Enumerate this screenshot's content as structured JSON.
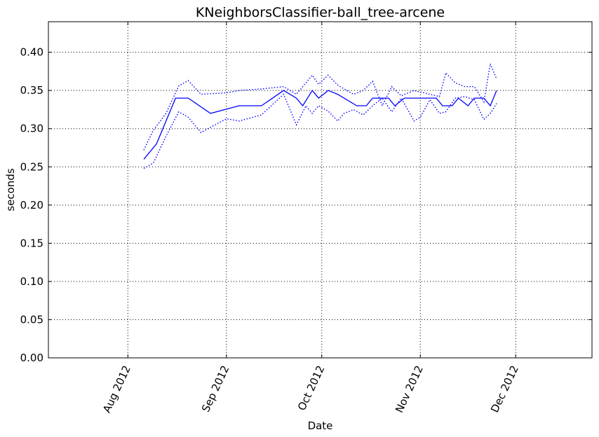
{
  "chart_data": {
    "type": "line",
    "title": "KNeighborsClassifier-ball_tree-arcene",
    "xlabel": "Date",
    "ylabel": "seconds",
    "x_axis_type": "date",
    "xlim": [
      "2012-07-07",
      "2012-12-25"
    ],
    "ylim": [
      0,
      0.44
    ],
    "grid": true,
    "yticks": [
      0.0,
      0.05,
      0.1,
      0.15,
      0.2,
      0.25,
      0.3,
      0.35,
      0.4
    ],
    "ytick_labels": [
      "0.00",
      "0.05",
      "0.10",
      "0.15",
      "0.20",
      "0.25",
      "0.30",
      "0.35",
      "0.40"
    ],
    "xticks": [
      "2012-08-01",
      "2012-09-01",
      "2012-10-01",
      "2012-11-01",
      "2012-12-01"
    ],
    "xtick_labels": [
      "Aug 2012",
      "Sep 2012",
      "Oct 2012",
      "Nov 2012",
      "Dec 2012"
    ],
    "colors": {
      "series": "#0000ff"
    },
    "series": [
      {
        "role": "mean",
        "style": "solid",
        "x": [
          "2012-08-06",
          "2012-08-10",
          "2012-08-16",
          "2012-08-20",
          "2012-08-27",
          "2012-09-05",
          "2012-09-12",
          "2012-09-19",
          "2012-09-23",
          "2012-09-25",
          "2012-09-28",
          "2012-09-30",
          "2012-10-03",
          "2012-10-06",
          "2012-10-12",
          "2012-10-15",
          "2012-10-17",
          "2012-10-22",
          "2012-10-24",
          "2012-10-27",
          "2012-10-31",
          "2012-11-02",
          "2012-11-06",
          "2012-11-08",
          "2012-11-11",
          "2012-11-13",
          "2012-11-16",
          "2012-11-18",
          "2012-11-21",
          "2012-11-23",
          "2012-11-25"
        ],
        "y": [
          0.26,
          0.28,
          0.34,
          0.34,
          0.32,
          0.33,
          0.33,
          0.35,
          0.34,
          0.33,
          0.35,
          0.34,
          0.35,
          0.345,
          0.33,
          0.33,
          0.34,
          0.34,
          0.33,
          0.34,
          0.34,
          0.34,
          0.34,
          0.33,
          0.33,
          0.34,
          0.33,
          0.34,
          0.34,
          0.33,
          0.35
        ]
      },
      {
        "role": "upper",
        "style": "dotted",
        "x": [
          "2012-08-06",
          "2012-08-09",
          "2012-08-13",
          "2012-08-17",
          "2012-08-20",
          "2012-08-24",
          "2012-09-01",
          "2012-09-05",
          "2012-09-12",
          "2012-09-19",
          "2012-09-23",
          "2012-09-26",
          "2012-09-28",
          "2012-09-30",
          "2012-10-03",
          "2012-10-06",
          "2012-10-08",
          "2012-10-11",
          "2012-10-14",
          "2012-10-17",
          "2012-10-20",
          "2012-10-23",
          "2012-10-26",
          "2012-10-30",
          "2012-11-01",
          "2012-11-04",
          "2012-11-07",
          "2012-11-09",
          "2012-11-12",
          "2012-11-15",
          "2012-11-18",
          "2012-11-21",
          "2012-11-23",
          "2012-11-25"
        ],
        "y": [
          0.272,
          0.298,
          0.32,
          0.356,
          0.363,
          0.345,
          0.347,
          0.35,
          0.352,
          0.355,
          0.345,
          0.36,
          0.37,
          0.358,
          0.37,
          0.357,
          0.352,
          0.345,
          0.35,
          0.362,
          0.33,
          0.355,
          0.343,
          0.35,
          0.348,
          0.345,
          0.342,
          0.373,
          0.36,
          0.355,
          0.355,
          0.335,
          0.385,
          0.365
        ]
      },
      {
        "role": "lower",
        "style": "dotted",
        "x": [
          "2012-08-06",
          "2012-08-09",
          "2012-08-13",
          "2012-08-17",
          "2012-08-20",
          "2012-08-24",
          "2012-09-01",
          "2012-09-05",
          "2012-09-12",
          "2012-09-19",
          "2012-09-23",
          "2012-09-26",
          "2012-09-28",
          "2012-09-30",
          "2012-10-03",
          "2012-10-06",
          "2012-10-08",
          "2012-10-11",
          "2012-10-14",
          "2012-10-17",
          "2012-10-20",
          "2012-10-23",
          "2012-10-26",
          "2012-10-30",
          "2012-11-01",
          "2012-11-04",
          "2012-11-07",
          "2012-11-09",
          "2012-11-12",
          "2012-11-15",
          "2012-11-18",
          "2012-11-21",
          "2012-11-23",
          "2012-11-25"
        ],
        "y": [
          0.248,
          0.255,
          0.29,
          0.322,
          0.315,
          0.295,
          0.313,
          0.31,
          0.318,
          0.345,
          0.305,
          0.33,
          0.32,
          0.33,
          0.323,
          0.31,
          0.32,
          0.325,
          0.318,
          0.33,
          0.34,
          0.322,
          0.34,
          0.31,
          0.315,
          0.338,
          0.32,
          0.322,
          0.34,
          0.342,
          0.338,
          0.312,
          0.32,
          0.333
        ]
      }
    ]
  }
}
